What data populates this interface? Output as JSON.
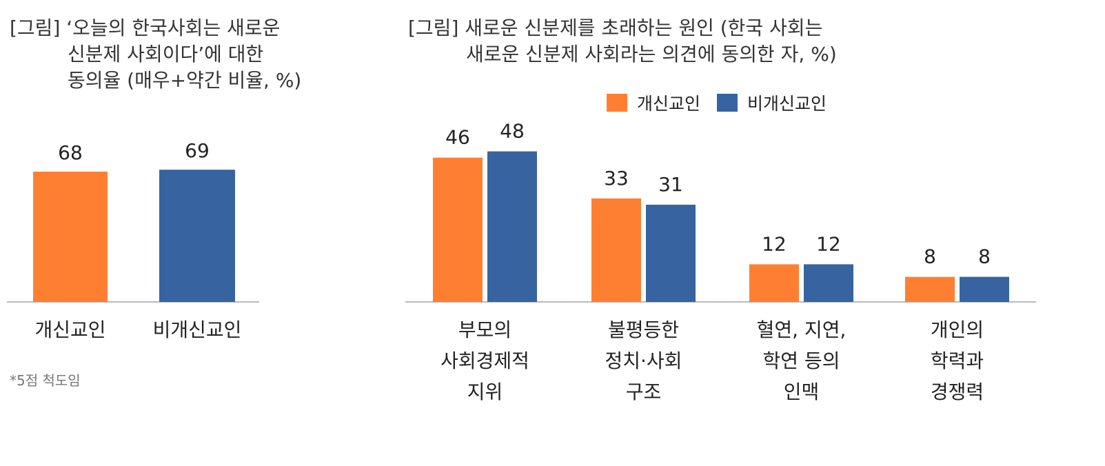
{
  "charts": {
    "left": {
      "title_lines": [
        "[그림] ‘오늘의 한국사회는 새로운",
        "신분제 사회이다’에 대한",
        "동의율 (매우+약간 비율, %)"
      ],
      "footnote": "*5점 척도임"
    },
    "right": {
      "title_lines": [
        "[그림] 새로운 신분제를 초래하는 원인 (한국 사회는",
        "새로운 신분제 사회라는 의견에 동의한 자, %)"
      ]
    }
  },
  "legend": [
    {
      "label": "개신교인",
      "color": "#FF7F32"
    },
    {
      "label": "비개신교인",
      "color": "#3764A0"
    }
  ],
  "chart_data": [
    {
      "type": "bar",
      "title": "[그림] ‘오늘의 한국사회는 새로운 신분제 사회이다’에 대한 동의율 (매우+약간 비율, %)",
      "categories": [
        "개신교인",
        "비개신교인"
      ],
      "values": [
        68,
        69
      ],
      "colors": [
        "#FF7F32",
        "#3764A0"
      ],
      "ylim": [
        0,
        80
      ],
      "grid": false
    },
    {
      "type": "bar",
      "title": "[그림] 새로운 신분제를 초래하는 원인 (한국 사회는 새로운 신분제 사회라는 의견에 동의한 자, %)",
      "categories": [
        [
          "부모의",
          "사회경제적",
          "지위"
        ],
        [
          "불평등한",
          "정치·사회",
          "구조"
        ],
        [
          "혈연, 지연,",
          "학연 등의",
          "인맥"
        ],
        [
          "개인의",
          "학력과",
          "경쟁력"
        ]
      ],
      "series": [
        {
          "name": "개신교인",
          "values": [
            46,
            33,
            12,
            8
          ],
          "color": "#FF7F32"
        },
        {
          "name": "비개신교인",
          "values": [
            48,
            31,
            12,
            8
          ],
          "color": "#3764A0"
        }
      ],
      "ylim": [
        0,
        55
      ],
      "grid": false,
      "legend": "top"
    }
  ]
}
